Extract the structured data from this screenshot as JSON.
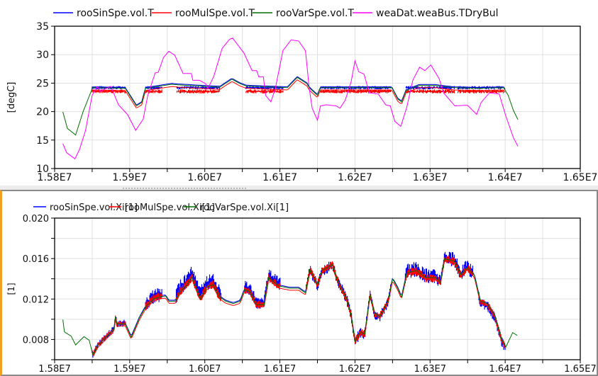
{
  "chart_data": [
    {
      "type": "line",
      "ylabel": "[degC]",
      "xlim": [
        1.58,
        1.65
      ],
      "ylim": [
        10,
        35
      ],
      "grid": true,
      "legend_position": "top",
      "x_ticks": [
        1.58,
        1.59,
        1.6,
        1.61,
        1.62,
        1.63,
        1.64,
        1.65
      ],
      "x_tick_labels": [
        "1.58E7",
        "1.59E7",
        "1.60E7",
        "1.61E7",
        "1.62E7",
        "1.63E7",
        "1.64E7",
        "1.65E7"
      ],
      "y_ticks": [
        10,
        15,
        20,
        25,
        30,
        35
      ],
      "y_tick_labels": [
        "10",
        "15",
        "20",
        "25",
        "30",
        "35"
      ],
      "series": [
        {
          "name": "rooSinSpe.vol.T",
          "color": "#0000ff",
          "follows": 2,
          "offset": 0.15,
          "range": [
            1.585,
            1.64
          ],
          "bands": [
            [
              1.585,
              1.5895,
              23.9,
              24.5
            ],
            [
              1.5921,
              1.5943,
              23.9,
              24.5
            ],
            [
              1.5963,
              1.602,
              23.9,
              24.5
            ],
            [
              1.6055,
              1.6105,
              23.9,
              24.5
            ],
            [
              1.6154,
              1.6248,
              23.9,
              24.5
            ],
            [
              1.6268,
              1.6333,
              23.9,
              24.5
            ],
            [
              1.6337,
              1.6398,
              23.9,
              24.5
            ]
          ]
        },
        {
          "name": "rooMulSpe.vol.T",
          "color": "#ff0000",
          "follows": 2,
          "offset": -0.4,
          "range": [
            1.585,
            1.64
          ],
          "bands": [
            [
              1.585,
              1.5895,
              23.2,
              23.9
            ],
            [
              1.5921,
              1.5943,
              23.2,
              23.9
            ],
            [
              1.5963,
              1.602,
              23.2,
              23.9
            ],
            [
              1.6055,
              1.6105,
              23.2,
              23.9
            ],
            [
              1.6154,
              1.6248,
              23.2,
              23.9
            ],
            [
              1.6268,
              1.6333,
              23.2,
              23.9
            ],
            [
              1.6337,
              1.6398,
              23.2,
              23.9
            ]
          ]
        },
        {
          "name": "rooVarSpe.vol.T",
          "color": "#007000",
          "points": [
            [
              1.5811,
              19.95
            ],
            [
              1.5817,
              17.05
            ],
            [
              1.5828,
              15.9
            ],
            [
              1.5838,
              20.0
            ],
            [
              1.5849,
              23.7
            ],
            [
              1.585,
              24.2
            ],
            [
              1.5894,
              24.1
            ],
            [
              1.59,
              22.85
            ],
            [
              1.5909,
              21.0
            ],
            [
              1.5916,
              21.6
            ],
            [
              1.5921,
              24.1
            ],
            [
              1.5956,
              24.8
            ],
            [
              1.5964,
              24.7
            ],
            [
              1.602,
              24.3
            ],
            [
              1.6036,
              25.7
            ],
            [
              1.6047,
              24.9
            ],
            [
              1.6055,
              24.5
            ],
            [
              1.611,
              24.2
            ],
            [
              1.6123,
              26.0
            ],
            [
              1.6125,
              25.84
            ],
            [
              1.6136,
              24.9
            ],
            [
              1.6139,
              24.2
            ],
            [
              1.615,
              22.85
            ],
            [
              1.6154,
              24.2
            ],
            [
              1.6249,
              24.2
            ],
            [
              1.6257,
              22.2
            ],
            [
              1.6262,
              21.7
            ],
            [
              1.6268,
              23.7
            ],
            [
              1.6285,
              24.6
            ],
            [
              1.6307,
              24.6
            ],
            [
              1.6332,
              24.2
            ],
            [
              1.6364,
              24.1
            ],
            [
              1.6398,
              24.2
            ],
            [
              1.6404,
              22.85
            ],
            [
              1.6411,
              20.2
            ],
            [
              1.6417,
              18.6
            ]
          ]
        },
        {
          "name": "weaDat.weaBus.TDryBul",
          "color": "#ff00ff",
          "points": [
            [
              1.5811,
              14.35
            ],
            [
              1.5816,
              12.8
            ],
            [
              1.5827,
              11.7
            ],
            [
              1.5833,
              13.3
            ],
            [
              1.5841,
              16.6
            ],
            [
              1.585,
              22.85
            ],
            [
              1.5857,
              24.4
            ],
            [
              1.5861,
              23.5
            ],
            [
              1.5866,
              23.9
            ],
            [
              1.5875,
              24.4
            ],
            [
              1.5885,
              21.2
            ],
            [
              1.5897,
              19.5
            ],
            [
              1.5908,
              16.7
            ],
            [
              1.5918,
              18.7
            ],
            [
              1.5924,
              22.85
            ],
            [
              1.5934,
              26.8
            ],
            [
              1.5938,
              26.9
            ],
            [
              1.5945,
              29.5
            ],
            [
              1.5952,
              30.6
            ],
            [
              1.596,
              29.9
            ],
            [
              1.5971,
              26.7
            ],
            [
              1.5982,
              26.7
            ],
            [
              1.5984,
              25.5
            ],
            [
              1.5993,
              25.5
            ],
            [
              1.6001,
              24.9
            ],
            [
              1.6004,
              24.0
            ],
            [
              1.6012,
              26.2
            ],
            [
              1.6023,
              31.1
            ],
            [
              1.6033,
              32.7
            ],
            [
              1.6037,
              32.9
            ],
            [
              1.6042,
              32.05
            ],
            [
              1.6052,
              30.3
            ],
            [
              1.6063,
              27.2
            ],
            [
              1.6069,
              27.2
            ],
            [
              1.6072,
              26.1
            ],
            [
              1.6078,
              26.1
            ],
            [
              1.6081,
              22.85
            ],
            [
              1.6088,
              21.7
            ],
            [
              1.6094,
              24.1
            ],
            [
              1.6104,
              30.7
            ],
            [
              1.6115,
              32.6
            ],
            [
              1.6125,
              32.4
            ],
            [
              1.6134,
              30.7
            ],
            [
              1.6139,
              24.1
            ],
            [
              1.6143,
              20.6
            ],
            [
              1.615,
              18.5
            ],
            [
              1.6154,
              21.0
            ],
            [
              1.6162,
              21.2
            ],
            [
              1.6175,
              21.0
            ],
            [
              1.618,
              20.6
            ],
            [
              1.6187,
              22.0
            ],
            [
              1.6195,
              25.3
            ],
            [
              1.62,
              28.9
            ],
            [
              1.6205,
              27.0
            ],
            [
              1.6212,
              26.6
            ],
            [
              1.6219,
              23.3
            ],
            [
              1.6231,
              23.1
            ],
            [
              1.6241,
              21.2
            ],
            [
              1.6247,
              21.0
            ],
            [
              1.6253,
              18.3
            ],
            [
              1.6261,
              17.4
            ],
            [
              1.6269,
              20.8
            ],
            [
              1.6277,
              25.5
            ],
            [
              1.6286,
              27.8
            ],
            [
              1.6293,
              27.2
            ],
            [
              1.6301,
              28.2
            ],
            [
              1.6312,
              25.8
            ],
            [
              1.6318,
              23.3
            ],
            [
              1.6333,
              21.0
            ],
            [
              1.6345,
              21.1
            ],
            [
              1.635,
              21.1
            ],
            [
              1.6362,
              19.5
            ],
            [
              1.6368,
              21.6
            ],
            [
              1.6379,
              23.3
            ],
            [
              1.6392,
              23.1
            ],
            [
              1.6401,
              19.15
            ],
            [
              1.6411,
              15.4
            ],
            [
              1.6417,
              13.9
            ]
          ]
        }
      ]
    },
    {
      "type": "line",
      "ylabel": "[1]",
      "xlim": [
        1.58,
        1.65
      ],
      "ylim": [
        0.006,
        0.02
      ],
      "grid": true,
      "legend_position": "top",
      "x_ticks": [
        1.58,
        1.59,
        1.6,
        1.61,
        1.62,
        1.63,
        1.64,
        1.65
      ],
      "x_tick_labels": [
        "1.58E7",
        "1.59E7",
        "1.60E7",
        "1.61E7",
        "1.62E7",
        "1.63E7",
        "1.64E7",
        "1.65E7"
      ],
      "y_ticks": [
        0.008,
        0.012,
        0.016,
        0.02
      ],
      "y_tick_labels": [
        "0.008",
        "0.012",
        "0.016",
        "0.020"
      ],
      "series": [
        {
          "name": "rooSinSpe.vol.Xi[1]",
          "color": "#0000ff",
          "follows": 2,
          "offset": 0.0001,
          "range": [
            1.585,
            1.64
          ],
          "relative_bands": true,
          "bands": [
            [
              1.585,
              1.5895,
              -0.0003,
              0.0004
            ],
            [
              1.5921,
              1.5943,
              -0.0005,
              0.001
            ],
            [
              1.5962,
              1.6022,
              -0.0004,
              0.0012
            ],
            [
              1.6053,
              1.6101,
              -0.0004,
              0.0009
            ],
            [
              1.6135,
              1.6248,
              -0.0006,
              0.0005
            ],
            [
              1.6267,
              1.6357,
              -0.0006,
              0.0009
            ],
            [
              1.6365,
              1.64,
              -0.0007,
              0.0003
            ]
          ]
        },
        {
          "name": "rooMulSpe.vol.Xi[1]",
          "color": "#ff0000",
          "follows": 2,
          "offset": -0.0002,
          "range": [
            1.585,
            1.64
          ],
          "relative_bands": true,
          "bands": [
            [
              1.585,
              1.5895,
              -0.0002,
              0.0003
            ],
            [
              1.5921,
              1.5943,
              -0.0004,
              0.0005
            ],
            [
              1.5962,
              1.6022,
              -0.0004,
              0.0005
            ],
            [
              1.6053,
              1.6101,
              -0.0004,
              0.0004
            ],
            [
              1.6135,
              1.6248,
              -0.0004,
              0.0004
            ],
            [
              1.6267,
              1.6357,
              -0.0005,
              0.0004
            ],
            [
              1.6365,
              1.64,
              -0.0004,
              0.0003
            ]
          ]
        },
        {
          "name": "rooVarSpe.vol.Xi[1]",
          "color": "#007000",
          "points": [
            [
              1.5811,
              0.00996
            ],
            [
              1.5813,
              0.00875
            ],
            [
              1.5822,
              0.00833
            ],
            [
              1.5828,
              0.00746
            ],
            [
              1.5839,
              0.00828
            ],
            [
              1.5846,
              0.00793
            ],
            [
              1.5851,
              0.00646
            ],
            [
              1.5857,
              0.00735
            ],
            [
              1.5866,
              0.00805
            ],
            [
              1.5879,
              0.00898
            ],
            [
              1.5881,
              0.01026
            ],
            [
              1.5883,
              0.0095
            ],
            [
              1.5894,
              0.00956
            ],
            [
              1.5902,
              0.00823
            ],
            [
              1.5913,
              0.01015
            ],
            [
              1.5921,
              0.0112
            ],
            [
              1.5932,
              0.01202
            ],
            [
              1.5942,
              0.01225
            ],
            [
              1.5948,
              0.0123
            ],
            [
              1.5952,
              0.01178
            ],
            [
              1.5961,
              0.01178
            ],
            [
              1.5967,
              0.01272
            ],
            [
              1.5975,
              0.0133
            ],
            [
              1.5983,
              0.01412
            ],
            [
              1.5994,
              0.01202
            ],
            [
              1.6003,
              0.01318
            ],
            [
              1.6011,
              0.01342
            ],
            [
              1.6019,
              0.01225
            ],
            [
              1.6028,
              0.01178
            ],
            [
              1.6038,
              0.01155
            ],
            [
              1.6047,
              0.01178
            ],
            [
              1.6053,
              0.01295
            ],
            [
              1.606,
              0.01272
            ],
            [
              1.6069,
              0.01143
            ],
            [
              1.6079,
              0.01143
            ],
            [
              1.6085,
              0.01412
            ],
            [
              1.6098,
              0.0133
            ],
            [
              1.6113,
              0.01307
            ],
            [
              1.6125,
              0.01307
            ],
            [
              1.6134,
              0.0126
            ],
            [
              1.614,
              0.01493
            ],
            [
              1.615,
              0.01342
            ],
            [
              1.6156,
              0.01482
            ],
            [
              1.617,
              0.0154
            ],
            [
              1.6176,
              0.014
            ],
            [
              1.6189,
              0.01202
            ],
            [
              1.6195,
              0.01038
            ],
            [
              1.62,
              0.00781
            ],
            [
              1.6207,
              0.00875
            ],
            [
              1.6213,
              0.00851
            ],
            [
              1.622,
              0.01248
            ],
            [
              1.6226,
              0.01061
            ],
            [
              1.6233,
              0.01026
            ],
            [
              1.6244,
              0.01178
            ],
            [
              1.625,
              0.014
            ],
            [
              1.6257,
              0.01307
            ],
            [
              1.6262,
              0.01218
            ],
            [
              1.6269,
              0.01458
            ],
            [
              1.6282,
              0.01482
            ],
            [
              1.6294,
              0.01412
            ],
            [
              1.6307,
              0.01412
            ],
            [
              1.6314,
              0.01365
            ],
            [
              1.6319,
              0.01598
            ],
            [
              1.6332,
              0.01575
            ],
            [
              1.6341,
              0.01435
            ],
            [
              1.6349,
              0.0151
            ],
            [
              1.6359,
              0.01435
            ],
            [
              1.6367,
              0.01178
            ],
            [
              1.6376,
              0.01155
            ],
            [
              1.6386,
              0.01038
            ],
            [
              1.6395,
              0.00805
            ],
            [
              1.6401,
              0.00727
            ],
            [
              1.641,
              0.00868
            ],
            [
              1.6416,
              0.0084
            ]
          ]
        }
      ]
    }
  ]
}
